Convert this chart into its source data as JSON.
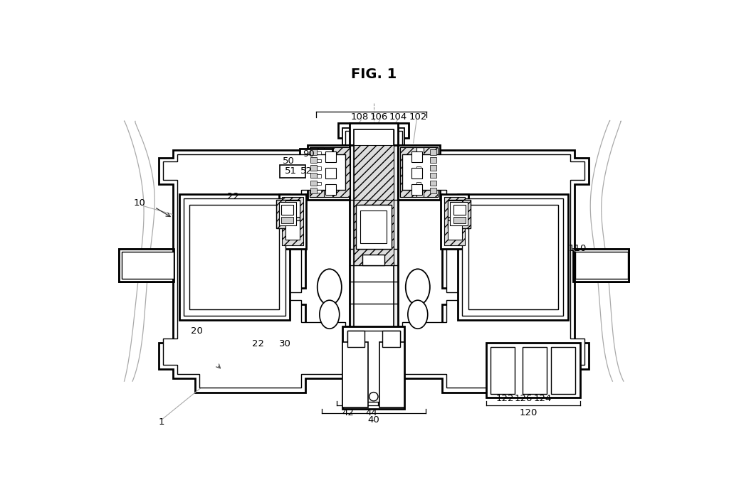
{
  "title": "FIG. 1",
  "bg": "#ffffff",
  "lw": 1.3,
  "tlw": 2.0,
  "fs": 9.5,
  "gray_leader": "#aaaaaa"
}
